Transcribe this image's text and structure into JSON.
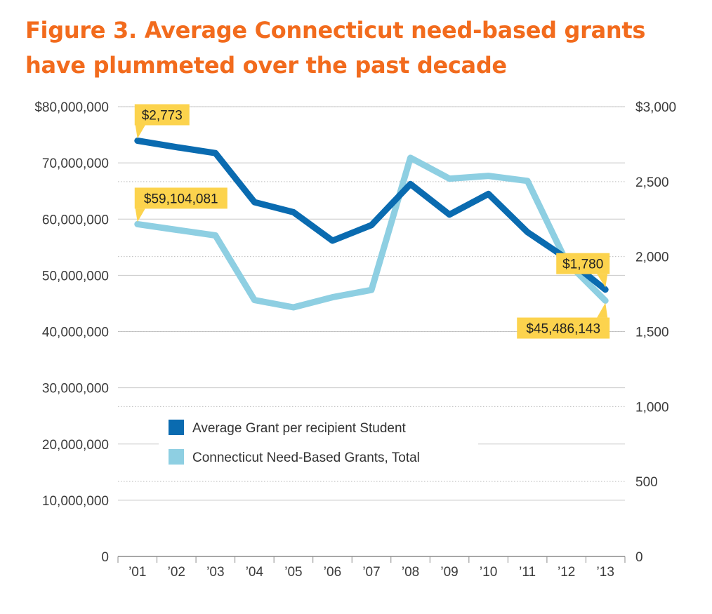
{
  "title_line1": "Figure 3. Average Connecticut need-based grants",
  "title_line2": "have plummeted over the past decade",
  "chart_data": {
    "type": "line",
    "categories": [
      "’01",
      "’02",
      "’03",
      "’04",
      "’05",
      "’06",
      "’07",
      "’08",
      "’09",
      "’10",
      "’11",
      "’12",
      "’13"
    ],
    "y_left": {
      "range": [
        0,
        80000000
      ],
      "ticks": [
        0,
        10000000,
        20000000,
        30000000,
        40000000,
        50000000,
        60000000,
        70000000,
        80000000
      ],
      "tick_labels": [
        "0",
        "10,000,000",
        "20,000,000",
        "30,000,000",
        "40,000,000",
        "50,000,000",
        "60,000,000",
        "70,000,000",
        "$80,000,000"
      ]
    },
    "y_right": {
      "range": [
        0,
        3000
      ],
      "ticks": [
        0,
        500,
        1000,
        1500,
        2000,
        2500,
        3000
      ],
      "tick_labels": [
        "0",
        "500",
        "1,000",
        "1,500",
        "2,000",
        "2,500",
        "$3,000"
      ]
    },
    "grid": true,
    "legend_position": "lower-left inside plot",
    "series": [
      {
        "name": "Average Grant per recipient Student",
        "axis": "right",
        "color": "#0a6bb0",
        "values": [
          2773,
          2730,
          2690,
          2363,
          2296,
          2106,
          2210,
          2484,
          2280,
          2418,
          2163,
          1988,
          1780
        ]
      },
      {
        "name": "Connecticut Need-Based Grants, Total",
        "axis": "left",
        "color": "#8ecfe2",
        "values": [
          59104081,
          58100000,
          57100000,
          45600000,
          44300000,
          46100000,
          47400000,
          70900000,
          67200000,
          67700000,
          66800000,
          52400000,
          45486143
        ]
      }
    ],
    "annotations": [
      {
        "series": 0,
        "index": 0,
        "label": "$2,773"
      },
      {
        "series": 1,
        "index": 0,
        "label": "$59,104,081"
      },
      {
        "series": 0,
        "index": 12,
        "label": "$1,780"
      },
      {
        "series": 1,
        "index": 12,
        "label": "$45,486,143"
      }
    ]
  }
}
